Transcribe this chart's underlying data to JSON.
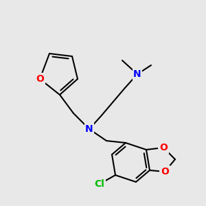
{
  "bg_color": "#e8e8e8",
  "atom_colors": {
    "N": "#0000ff",
    "O": "#ff0000",
    "Cl": "#00bb00",
    "C": "#000000"
  },
  "bond_color": "#000000",
  "bond_width": 1.5
}
